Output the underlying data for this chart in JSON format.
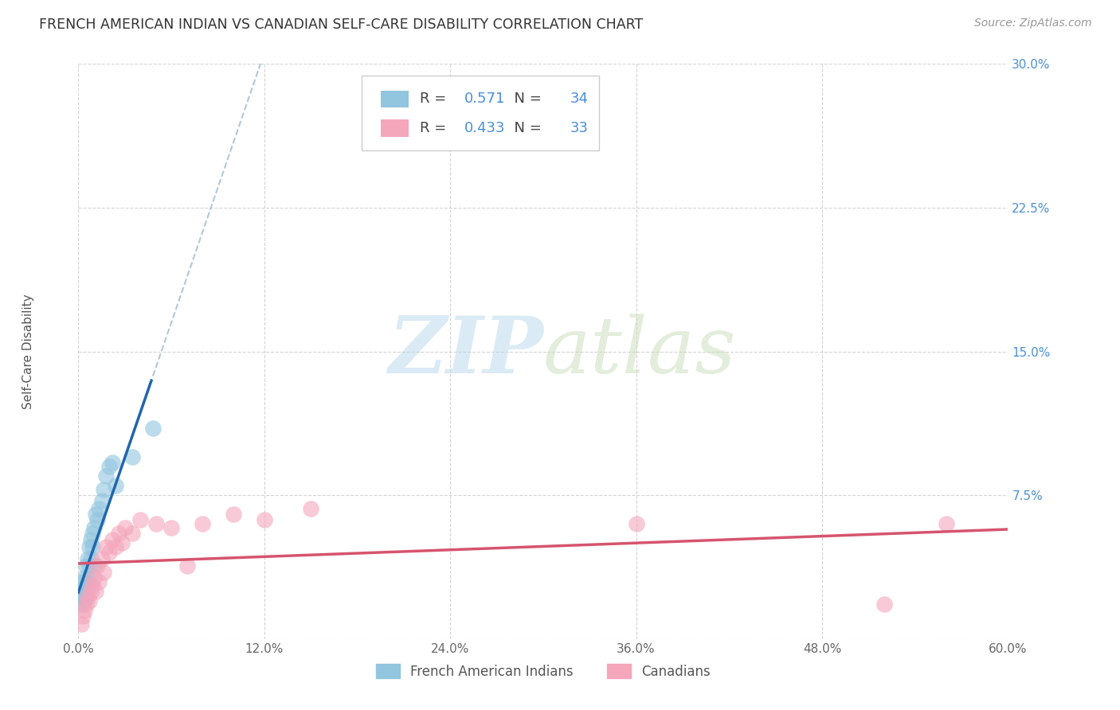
{
  "title": "FRENCH AMERICAN INDIAN VS CANADIAN SELF-CARE DISABILITY CORRELATION CHART",
  "source": "Source: ZipAtlas.com",
  "ylabel": "Self-Care Disability",
  "xlim": [
    0.0,
    0.6
  ],
  "ylim": [
    0.0,
    0.3
  ],
  "xticks": [
    0.0,
    0.12,
    0.24,
    0.36,
    0.48,
    0.6
  ],
  "yticks": [
    0.0,
    0.075,
    0.15,
    0.225,
    0.3
  ],
  "xtick_labels": [
    "0.0%",
    "12.0%",
    "24.0%",
    "36.0%",
    "48.0%",
    "60.0%"
  ],
  "ytick_labels": [
    "",
    "7.5%",
    "15.0%",
    "22.5%",
    "30.0%"
  ],
  "blue_R": 0.571,
  "blue_N": 34,
  "pink_R": 0.433,
  "pink_N": 33,
  "blue_color": "#92c5de",
  "pink_color": "#f4a6bb",
  "blue_line_color": "#2166ac",
  "pink_line_color": "#d6546e",
  "dashed_color": "#b0c8d8",
  "legend_label_blue": "French American Indians",
  "legend_label_pink": "Canadians",
  "blue_x": [
    0.001,
    0.002,
    0.002,
    0.003,
    0.003,
    0.004,
    0.004,
    0.004,
    0.005,
    0.005,
    0.005,
    0.006,
    0.006,
    0.006,
    0.007,
    0.007,
    0.007,
    0.008,
    0.008,
    0.009,
    0.009,
    0.01,
    0.01,
    0.011,
    0.012,
    0.013,
    0.015,
    0.016,
    0.018,
    0.02,
    0.022,
    0.024,
    0.035,
    0.048
  ],
  "blue_y": [
    0.02,
    0.018,
    0.025,
    0.022,
    0.03,
    0.025,
    0.032,
    0.02,
    0.038,
    0.028,
    0.022,
    0.042,
    0.032,
    0.025,
    0.048,
    0.038,
    0.03,
    0.052,
    0.042,
    0.055,
    0.048,
    0.058,
    0.038,
    0.065,
    0.062,
    0.068,
    0.072,
    0.078,
    0.085,
    0.09,
    0.092,
    0.08,
    0.095,
    0.11
  ],
  "pink_x": [
    0.002,
    0.003,
    0.004,
    0.005,
    0.006,
    0.007,
    0.008,
    0.009,
    0.01,
    0.011,
    0.012,
    0.013,
    0.015,
    0.016,
    0.018,
    0.02,
    0.022,
    0.024,
    0.026,
    0.028,
    0.03,
    0.035,
    0.04,
    0.05,
    0.06,
    0.07,
    0.08,
    0.1,
    0.12,
    0.15,
    0.36,
    0.52,
    0.56
  ],
  "pink_y": [
    0.008,
    0.012,
    0.015,
    0.018,
    0.022,
    0.02,
    0.025,
    0.028,
    0.032,
    0.025,
    0.038,
    0.03,
    0.042,
    0.035,
    0.048,
    0.045,
    0.052,
    0.048,
    0.055,
    0.05,
    0.058,
    0.055,
    0.062,
    0.06,
    0.058,
    0.038,
    0.06,
    0.065,
    0.062,
    0.068,
    0.06,
    0.018,
    0.06
  ],
  "watermark_zip": "ZIP",
  "watermark_atlas": "atlas",
  "background_color": "#ffffff",
  "grid_color": "#d0d0d0"
}
